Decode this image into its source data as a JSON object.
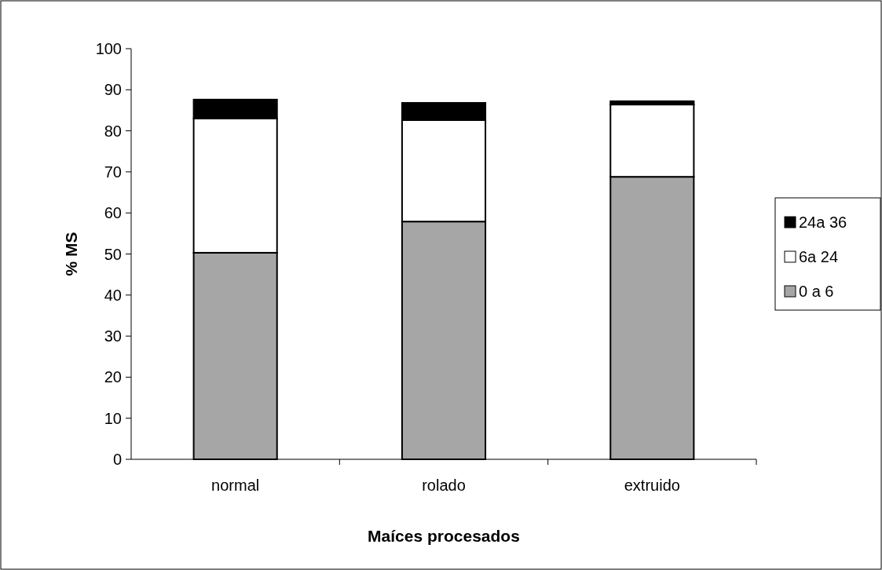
{
  "chart_data": {
    "type": "bar",
    "stacked": true,
    "xlabel": "Maíces procesados",
    "ylabel": "% MS",
    "categories": [
      "normal",
      "rolado",
      "extruido"
    ],
    "series": [
      {
        "name": "0 a 6",
        "color": "#a6a6a6",
        "values": [
          50.3,
          57.9,
          68.8
        ]
      },
      {
        "name": "6a 24",
        "color": "#ffffff",
        "values": [
          32.7,
          24.7,
          17.6
        ]
      },
      {
        "name": "24a 36",
        "color": "#000000",
        "values": [
          4.6,
          4.2,
          0.8
        ]
      }
    ],
    "ylim": [
      0,
      100
    ],
    "yticks": [
      0,
      10,
      20,
      30,
      40,
      50,
      60,
      70,
      80,
      90,
      100
    ],
    "grid": false,
    "legend": "right"
  }
}
